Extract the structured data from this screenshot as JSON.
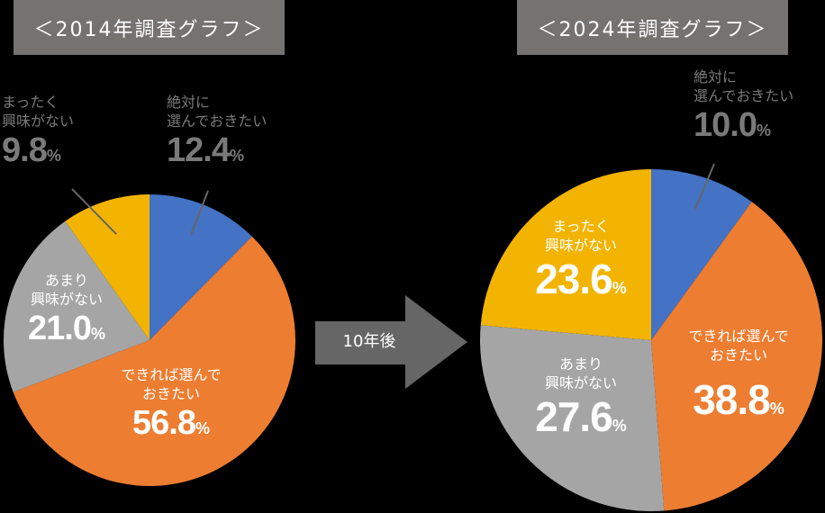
{
  "titles": {
    "left": "＜2014年調査グラフ＞",
    "right": "＜2024年調査グラフ＞"
  },
  "arrow": {
    "label": "10年後",
    "color": "#666666"
  },
  "percent_sign": "%",
  "colors": {
    "definitely": "#4472C4",
    "if_possible": "#ED7D31",
    "not_much": "#A5A5A5",
    "not_at_all": "#F2B400",
    "title_bg": "#757270",
    "outside_label": "#7A7A7A"
  },
  "left": {
    "definitely": {
      "line1": "絶対に",
      "line2": "選んでおきたい",
      "value": "12.4"
    },
    "if_possible": {
      "line1": "できれば選んで",
      "line2": "おきたい",
      "value": "56.8"
    },
    "not_much": {
      "line1": "あまり",
      "line2": "興味がない",
      "value": "21.0"
    },
    "not_at_all": {
      "line1": "まったく",
      "line2": "興味がない",
      "value": "9.8"
    }
  },
  "right": {
    "definitely": {
      "line1": "絶対に",
      "line2": "選んでおきたい",
      "value": "10.0"
    },
    "if_possible": {
      "line1": "できれば選んで",
      "line2": "おきたい",
      "value": "38.8"
    },
    "not_much": {
      "line1": "あまり",
      "line2": "興味がない",
      "value": "27.6"
    },
    "not_at_all": {
      "line1": "まったく",
      "line2": "興味がない",
      "value": "23.6"
    }
  },
  "chart_data": [
    {
      "type": "pie",
      "title": "＜2014年調査グラフ＞",
      "categories": [
        "絶対に選んでおきたい",
        "できれば選んでおきたい",
        "あまり興味がない",
        "まったく興味がない"
      ],
      "values": [
        12.4,
        56.8,
        21.0,
        9.8
      ],
      "colors": [
        "#4472C4",
        "#ED7D31",
        "#A5A5A5",
        "#F2B400"
      ],
      "unit": "%",
      "start_angle": "12 o'clock, clockwise"
    },
    {
      "type": "pie",
      "title": "＜2024年調査グラフ＞",
      "categories": [
        "絶対に選んでおきたい",
        "できれば選んでおきたい",
        "あまり興味がない",
        "まったく興味がない"
      ],
      "values": [
        10.0,
        38.8,
        27.6,
        23.6
      ],
      "colors": [
        "#4472C4",
        "#ED7D31",
        "#A5A5A5",
        "#F2B400"
      ],
      "unit": "%",
      "start_angle": "12 o'clock, clockwise"
    }
  ]
}
